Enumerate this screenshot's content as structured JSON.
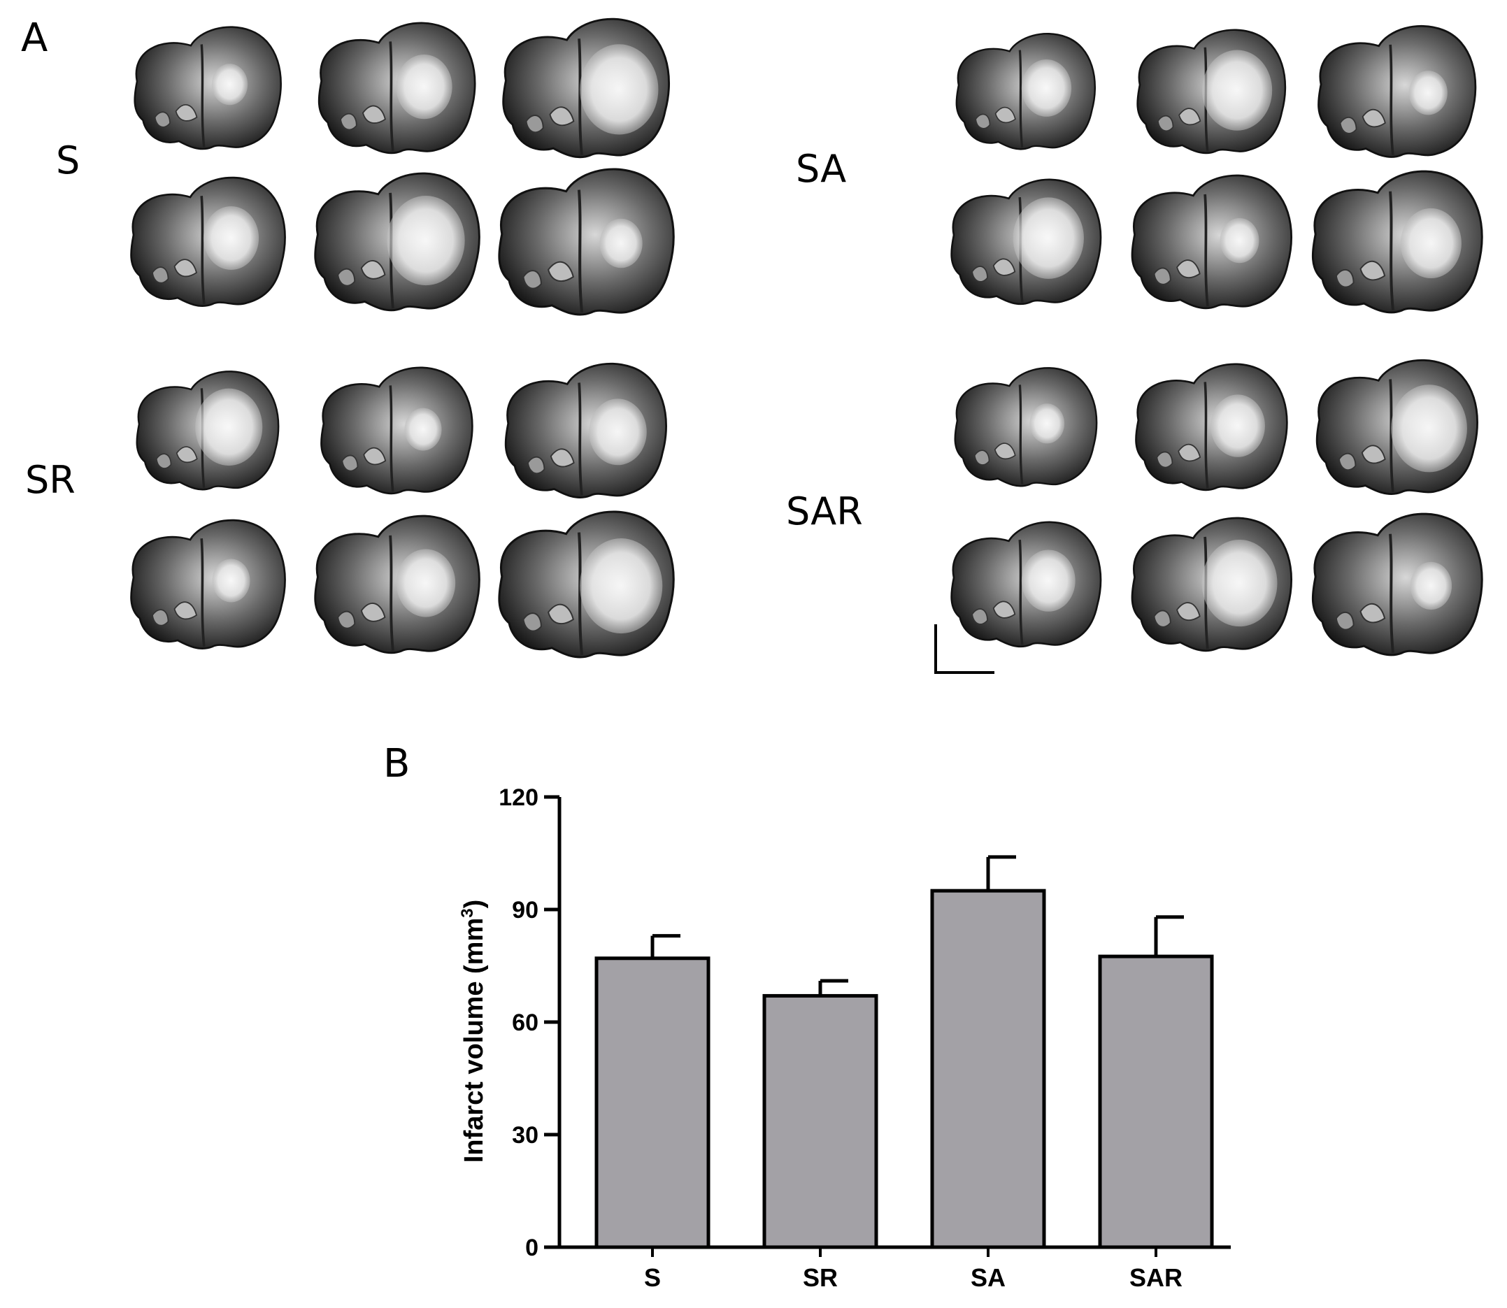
{
  "figure": {
    "panel_a_label": "A",
    "panel_b_label": "B",
    "group_labels": {
      "s": "S",
      "sa": "SA",
      "sr": "SR",
      "sar": "SAR"
    }
  },
  "chart_data": {
    "type": "bar",
    "categories": [
      "S",
      "SR",
      "SA",
      "SAR"
    ],
    "values": [
      77,
      67,
      95,
      77.5
    ],
    "errors": [
      6,
      4,
      9,
      10.5
    ],
    "ylabel_main": "Infarct volume (mm",
    "ylabel_sup": "3",
    "ylabel_end": ")",
    "ylim": [
      0,
      120
    ],
    "yticks": [
      0,
      30,
      60,
      90,
      120
    ],
    "grid": false,
    "bar_color": "#a3a1a6",
    "edge_color": "#000000"
  }
}
